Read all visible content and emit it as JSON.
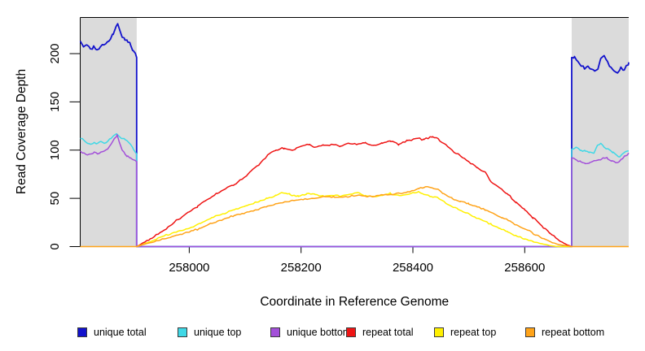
{
  "chart_data": {
    "type": "line",
    "title": "",
    "xlabel": "Coordinate in Reference Genome",
    "ylabel": "Read Coverage Depth",
    "xlim": [
      257805,
      258786
    ],
    "ylim": [
      0,
      238
    ],
    "x_ticks": [
      "258000",
      "258200",
      "258400",
      "258600"
    ],
    "x_tick_values": [
      258000,
      258200,
      258400,
      258600
    ],
    "y_ticks": [
      "0",
      "50",
      "100",
      "150",
      "200"
    ],
    "y_tick_values": [
      0,
      50,
      100,
      150,
      200
    ],
    "grid": "off",
    "legend_position": "bottom",
    "shaded_region_color": "#DBDBDB",
    "shaded_regions": [
      {
        "start": 257805,
        "end": 257906
      },
      {
        "start": 258684,
        "end": 258786
      }
    ],
    "series": [
      {
        "name": "unique total",
        "color": "#1212CC",
        "points": [
          [
            257805,
            213
          ],
          [
            257811,
            207
          ],
          [
            257817,
            209
          ],
          [
            257823,
            205
          ],
          [
            257829,
            208
          ],
          [
            257835,
            204
          ],
          [
            257841,
            207
          ],
          [
            257847,
            209
          ],
          [
            257853,
            212
          ],
          [
            257859,
            215
          ],
          [
            257864,
            220
          ],
          [
            257869,
            228
          ],
          [
            257872,
            231
          ],
          [
            257876,
            224
          ],
          [
            257880,
            217
          ],
          [
            257885,
            214
          ],
          [
            257890,
            212
          ],
          [
            257895,
            209
          ],
          [
            257900,
            203
          ],
          [
            257906,
            196
          ],
          [
            257906,
            0
          ],
          [
            258684,
            0
          ],
          [
            258684,
            196
          ],
          [
            258689,
            197
          ],
          [
            258695,
            192
          ],
          [
            258701,
            187
          ],
          [
            258707,
            184
          ],
          [
            258713,
            187
          ],
          [
            258719,
            184
          ],
          [
            258725,
            182
          ],
          [
            258731,
            184
          ],
          [
            258736,
            195
          ],
          [
            258742,
            198
          ],
          [
            258748,
            192
          ],
          [
            258754,
            186
          ],
          [
            258760,
            182
          ],
          [
            258766,
            180
          ],
          [
            258772,
            186
          ],
          [
            258778,
            183
          ],
          [
            258786,
            191
          ]
        ]
      },
      {
        "name": "unique top",
        "color": "#3FD8E6",
        "points": [
          [
            257805,
            112
          ],
          [
            257812,
            110
          ],
          [
            257818,
            107
          ],
          [
            257824,
            106
          ],
          [
            257830,
            108
          ],
          [
            257836,
            107
          ],
          [
            257842,
            109
          ],
          [
            257848,
            107
          ],
          [
            257854,
            109
          ],
          [
            257860,
            112
          ],
          [
            257865,
            115
          ],
          [
            257870,
            117
          ],
          [
            257875,
            114
          ],
          [
            257880,
            112
          ],
          [
            257885,
            111
          ],
          [
            257890,
            109
          ],
          [
            257895,
            106
          ],
          [
            257900,
            101
          ],
          [
            257906,
            96
          ],
          [
            257906,
            0
          ],
          [
            258684,
            0
          ],
          [
            258684,
            101
          ],
          [
            258692,
            103
          ],
          [
            258700,
            100
          ],
          [
            258708,
            99
          ],
          [
            258716,
            98
          ],
          [
            258724,
            97
          ],
          [
            258730,
            105
          ],
          [
            258736,
            107
          ],
          [
            258742,
            103
          ],
          [
            258750,
            101
          ],
          [
            258758,
            98
          ],
          [
            258764,
            95
          ],
          [
            258770,
            93
          ],
          [
            258777,
            97
          ],
          [
            258786,
            99
          ]
        ]
      },
      {
        "name": "unique bottom",
        "color": "#A350D9",
        "points": [
          [
            257805,
            99
          ],
          [
            257812,
            97
          ],
          [
            257818,
            95
          ],
          [
            257824,
            96
          ],
          [
            257830,
            98
          ],
          [
            257836,
            96
          ],
          [
            257842,
            98
          ],
          [
            257848,
            99
          ],
          [
            257854,
            101
          ],
          [
            257860,
            106
          ],
          [
            257866,
            112
          ],
          [
            257871,
            116
          ],
          [
            257875,
            108
          ],
          [
            257880,
            100
          ],
          [
            257885,
            96
          ],
          [
            257890,
            94
          ],
          [
            257895,
            92
          ],
          [
            257900,
            90
          ],
          [
            257906,
            88
          ],
          [
            257906,
            0
          ],
          [
            258684,
            0
          ],
          [
            258684,
            92
          ],
          [
            258692,
            90
          ],
          [
            258700,
            88
          ],
          [
            258708,
            86
          ],
          [
            258716,
            87
          ],
          [
            258724,
            89
          ],
          [
            258732,
            90
          ],
          [
            258740,
            92
          ],
          [
            258748,
            91
          ],
          [
            258756,
            89
          ],
          [
            258763,
            87
          ],
          [
            258769,
            88
          ],
          [
            258775,
            91
          ],
          [
            258780,
            94
          ],
          [
            258786,
            97
          ]
        ]
      },
      {
        "name": "repeat total",
        "color": "#EE1414",
        "points": [
          [
            257906,
            0
          ],
          [
            257930,
            8
          ],
          [
            257955,
            17
          ],
          [
            257980,
            28
          ],
          [
            258000,
            36
          ],
          [
            258015,
            42
          ],
          [
            258030,
            48
          ],
          [
            258050,
            55
          ],
          [
            258065,
            60
          ],
          [
            258080,
            64
          ],
          [
            258095,
            70
          ],
          [
            258110,
            78
          ],
          [
            258125,
            85
          ],
          [
            258140,
            95
          ],
          [
            258155,
            100
          ],
          [
            258170,
            102
          ],
          [
            258185,
            100
          ],
          [
            258200,
            104
          ],
          [
            258215,
            106
          ],
          [
            258225,
            103
          ],
          [
            258240,
            105
          ],
          [
            258255,
            106
          ],
          [
            258270,
            104
          ],
          [
            258285,
            107
          ],
          [
            258300,
            106
          ],
          [
            258315,
            108
          ],
          [
            258330,
            105
          ],
          [
            258345,
            107
          ],
          [
            258360,
            109
          ],
          [
            258375,
            106
          ],
          [
            258390,
            110
          ],
          [
            258405,
            112
          ],
          [
            258420,
            111
          ],
          [
            258435,
            114
          ],
          [
            258445,
            112
          ],
          [
            258455,
            107
          ],
          [
            258470,
            100
          ],
          [
            258485,
            94
          ],
          [
            258500,
            88
          ],
          [
            258515,
            82
          ],
          [
            258530,
            77
          ],
          [
            258540,
            67
          ],
          [
            258555,
            61
          ],
          [
            258570,
            54
          ],
          [
            258585,
            46
          ],
          [
            258600,
            38
          ],
          [
            258615,
            30
          ],
          [
            258630,
            22
          ],
          [
            258645,
            14
          ],
          [
            258660,
            7
          ],
          [
            258672,
            3
          ],
          [
            258684,
            0
          ]
        ]
      },
      {
        "name": "repeat top",
        "color": "#FFF000",
        "points": [
          [
            257906,
            0
          ],
          [
            257930,
            5
          ],
          [
            257955,
            11
          ],
          [
            257980,
            16
          ],
          [
            258000,
            19
          ],
          [
            258020,
            24
          ],
          [
            258040,
            30
          ],
          [
            258060,
            34
          ],
          [
            258080,
            38
          ],
          [
            258100,
            42
          ],
          [
            258120,
            46
          ],
          [
            258140,
            50
          ],
          [
            258155,
            53
          ],
          [
            258165,
            56
          ],
          [
            258180,
            54
          ],
          [
            258195,
            52
          ],
          [
            258210,
            55
          ],
          [
            258225,
            54
          ],
          [
            258240,
            52
          ],
          [
            258255,
            53
          ],
          [
            258270,
            52
          ],
          [
            258285,
            54
          ],
          [
            258300,
            56
          ],
          [
            258315,
            53
          ],
          [
            258330,
            52
          ],
          [
            258345,
            53
          ],
          [
            258360,
            55
          ],
          [
            258375,
            53
          ],
          [
            258390,
            54
          ],
          [
            258400,
            56
          ],
          [
            258410,
            57
          ],
          [
            258420,
            54
          ],
          [
            258432,
            52
          ],
          [
            258444,
            51
          ],
          [
            258452,
            48
          ],
          [
            258465,
            43
          ],
          [
            258480,
            39
          ],
          [
            258495,
            35
          ],
          [
            258510,
            31
          ],
          [
            258525,
            27
          ],
          [
            258540,
            23
          ],
          [
            258555,
            19
          ],
          [
            258570,
            15
          ],
          [
            258585,
            11
          ],
          [
            258600,
            8
          ],
          [
            258615,
            5
          ],
          [
            258630,
            3
          ],
          [
            258645,
            1
          ],
          [
            258660,
            0
          ],
          [
            258684,
            0
          ]
        ]
      },
      {
        "name": "repeat bottom",
        "color": "#FFA319",
        "points": [
          [
            257805,
            0
          ],
          [
            257906,
            0
          ],
          [
            257930,
            4
          ],
          [
            257955,
            8
          ],
          [
            257980,
            12
          ],
          [
            258000,
            15
          ],
          [
            258020,
            19
          ],
          [
            258040,
            24
          ],
          [
            258060,
            28
          ],
          [
            258080,
            32
          ],
          [
            258100,
            35
          ],
          [
            258120,
            38
          ],
          [
            258140,
            42
          ],
          [
            258160,
            45
          ],
          [
            258180,
            47
          ],
          [
            258200,
            49
          ],
          [
            258220,
            50
          ],
          [
            258240,
            52
          ],
          [
            258260,
            51
          ],
          [
            258280,
            52
          ],
          [
            258300,
            53
          ],
          [
            258320,
            52
          ],
          [
            258340,
            53
          ],
          [
            258360,
            54
          ],
          [
            258380,
            55
          ],
          [
            258395,
            57
          ],
          [
            258410,
            60
          ],
          [
            258422,
            62
          ],
          [
            258434,
            61
          ],
          [
            258446,
            59
          ],
          [
            258455,
            55
          ],
          [
            258470,
            50
          ],
          [
            258485,
            47
          ],
          [
            258500,
            44
          ],
          [
            258515,
            41
          ],
          [
            258530,
            38
          ],
          [
            258545,
            34
          ],
          [
            258560,
            30
          ],
          [
            258575,
            26
          ],
          [
            258590,
            21
          ],
          [
            258605,
            17
          ],
          [
            258620,
            12
          ],
          [
            258635,
            8
          ],
          [
            258650,
            4
          ],
          [
            258662,
            2
          ],
          [
            258674,
            1
          ],
          [
            258684,
            0
          ],
          [
            258786,
            0
          ]
        ]
      }
    ]
  }
}
